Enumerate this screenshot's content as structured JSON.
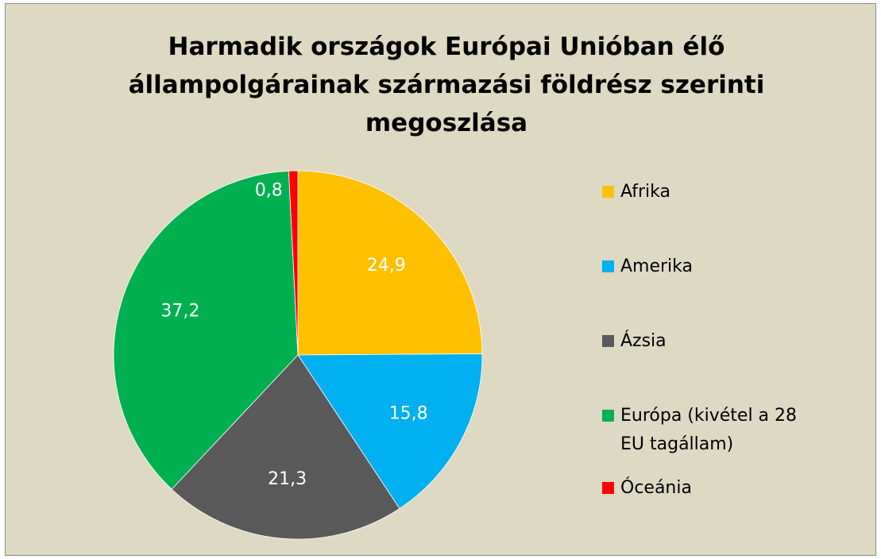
{
  "chart_data": {
    "type": "pie",
    "title": "Harmadik országok Európai Unióban élő állampolgárainak származási földrész szerinti megoszlása",
    "categories": [
      "Afrika",
      "Amerika",
      "Ázsia",
      "Európa (kivétel a 28 EU tagállam)",
      "Óceánia"
    ],
    "values": [
      24.9,
      15.8,
      21.3,
      37.2,
      0.8
    ],
    "value_labels": [
      "24,9",
      "15,8",
      "21,3",
      "37,2",
      "0,8"
    ],
    "colors": [
      "#ffc000",
      "#00b0f0",
      "#595959",
      "#00b050",
      "#ff0000"
    ],
    "legend": "right"
  }
}
